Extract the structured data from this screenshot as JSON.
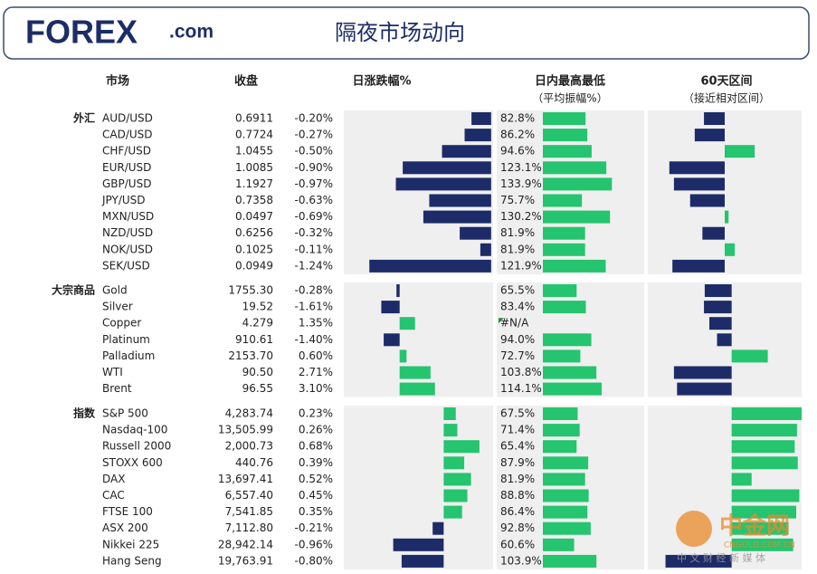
{
  "header": {
    "logo_main": "FOREX",
    "logo_suffix": ".com",
    "title": "隔夜市场动向"
  },
  "columns": {
    "market": "市场",
    "close": "收盘",
    "change": "日涨跌幅%",
    "intraday": "日内最高最低",
    "intraday_sub": "（平均振幅%）",
    "range60": "60天区间",
    "range60_sub": "（接近相对区间）"
  },
  "intraday_lim": [
    0,
    193
  ],
  "colors": {
    "negative": "#1d2c68",
    "positive": "#25c46f"
  },
  "groups": [
    {
      "name": "外汇",
      "change_lim": [
        -1.5,
        0.02
      ],
      "range60_lim": [
        -1,
        1
      ],
      "rows": [
        {
          "name": "AUD/USD",
          "close": "0.6911",
          "change": -0.2,
          "change_label": "-0.20%",
          "intraday": 82.8,
          "intraday_label": "82.8%",
          "range60": -0.27
        },
        {
          "name": "CAD/USD",
          "close": "0.7724",
          "change": -0.27,
          "change_label": "-0.27%",
          "intraday": 86.2,
          "intraday_label": "86.2%",
          "range60": -0.39
        },
        {
          "name": "CHF/USD",
          "close": "1.0455",
          "change": -0.5,
          "change_label": "-0.50%",
          "intraday": 94.6,
          "intraday_label": "94.6%",
          "range60": 0.39
        },
        {
          "name": "EUR/USD",
          "close": "1.0085",
          "change": -0.9,
          "change_label": "-0.90%",
          "intraday": 123.1,
          "intraday_label": "123.1%",
          "range60": -0.72
        },
        {
          "name": "GBP/USD",
          "close": "1.1927",
          "change": -0.97,
          "change_label": "-0.97%",
          "intraday": 133.9,
          "intraday_label": "133.9%",
          "range60": -0.66
        },
        {
          "name": "JPY/USD",
          "close": "0.7358",
          "change": -0.63,
          "change_label": "-0.63%",
          "intraday": 75.7,
          "intraday_label": "75.7%",
          "range60": -0.45
        },
        {
          "name": "MXN/USD",
          "close": "0.0497",
          "change": -0.69,
          "change_label": "-0.69%",
          "intraday": 130.2,
          "intraday_label": "130.2%",
          "range60": 0.05
        },
        {
          "name": "NZD/USD",
          "close": "0.6256",
          "change": -0.32,
          "change_label": "-0.32%",
          "intraday": 81.9,
          "intraday_label": "81.9%",
          "range60": -0.29
        },
        {
          "name": "NOK/USD",
          "close": "0.1025",
          "change": -0.11,
          "change_label": "-0.11%",
          "intraday": 81.9,
          "intraday_label": "81.9%",
          "range60": 0.13
        },
        {
          "name": "SEK/USD",
          "close": "0.0949",
          "change": -1.24,
          "change_label": "-1.24%",
          "intraday": 121.9,
          "intraday_label": "121.9%",
          "range60": -0.68
        }
      ]
    },
    {
      "name": "大宗商品",
      "change_lim": [
        -4.9,
        8.2
      ],
      "range60_lim": [
        -1.09,
        0.91
      ],
      "rows": [
        {
          "name": "Gold",
          "close": "1755.30",
          "change": -0.28,
          "change_label": "-0.28%",
          "intraday": 65.5,
          "intraday_label": "65.5%",
          "range60": -0.35
        },
        {
          "name": "Silver",
          "close": "19.52",
          "change": -1.61,
          "change_label": "-1.61%",
          "intraday": 83.4,
          "intraday_label": "83.4%",
          "range60": -0.36
        },
        {
          "name": "Copper",
          "close": "4.279",
          "change": 1.35,
          "change_label": "1.35%",
          "intraday": null,
          "intraday_label": "#N/A",
          "range60": -0.29
        },
        {
          "name": "Platinum",
          "close": "910.61",
          "change": -1.4,
          "change_label": "-1.40%",
          "intraday": 94.0,
          "intraday_label": "94.0%",
          "range60": -0.19
        },
        {
          "name": "Palladium",
          "close": "2153.70",
          "change": 0.6,
          "change_label": "0.60%",
          "intraday": 72.7,
          "intraday_label": "72.7%",
          "range60": 0.47
        },
        {
          "name": "WTI",
          "close": "90.50",
          "change": 2.71,
          "change_label": "2.71%",
          "intraday": 103.8,
          "intraday_label": "103.8%",
          "range60": -0.75
        },
        {
          "name": "Brent",
          "close": "96.55",
          "change": 3.1,
          "change_label": "3.10%",
          "intraday": 114.1,
          "intraday_label": "114.1%",
          "range60": -0.71
        }
      ]
    },
    {
      "name": "指数",
      "change_lim": [
        -1.9,
        0.94
      ],
      "range60_lim": [
        -1.09,
        0.91
      ],
      "rows": [
        {
          "name": "S&P 500",
          "close": "4,283.74",
          "change": 0.23,
          "change_label": "0.23%",
          "intraday": 67.5,
          "intraday_label": "67.5%",
          "range60": 0.91
        },
        {
          "name": "Nasdaq-100",
          "close": "13,505.99",
          "change": 0.26,
          "change_label": "0.26%",
          "intraday": 71.4,
          "intraday_label": "71.4%",
          "range60": 0.85
        },
        {
          "name": "Russell 2000",
          "close": "2,000.73",
          "change": 0.68,
          "change_label": "0.68%",
          "intraday": 65.4,
          "intraday_label": "65.4%",
          "range60": 0.82
        },
        {
          "name": "STOXX 600",
          "close": "440.76",
          "change": 0.39,
          "change_label": "0.39%",
          "intraday": 87.9,
          "intraday_label": "87.9%",
          "range60": 0.86
        },
        {
          "name": "DAX",
          "close": "13,697.41",
          "change": 0.52,
          "change_label": "0.52%",
          "intraday": 81.9,
          "intraday_label": "81.9%",
          "range60": 0.26
        },
        {
          "name": "CAC",
          "close": "6,557.40",
          "change": 0.45,
          "change_label": "0.45%",
          "intraday": 88.8,
          "intraday_label": "88.8%",
          "range60": 0.88
        },
        {
          "name": "FTSE 100",
          "close": "7,541.85",
          "change": 0.35,
          "change_label": "0.35%",
          "intraday": 86.4,
          "intraday_label": "86.4%",
          "range60": 0.84
        },
        {
          "name": "ASX 200",
          "close": "7,112.80",
          "change": -0.21,
          "change_label": "-0.21%",
          "intraday": 92.8,
          "intraday_label": "92.8%",
          "range60": 0.74
        },
        {
          "name": "Nikkei 225",
          "close": "28,942.14",
          "change": -0.96,
          "change_label": "-0.96%",
          "intraday": 60.6,
          "intraday_label": "60.6%",
          "range60": 0.8
        },
        {
          "name": "Hang Seng",
          "close": "19,763.91",
          "change": -0.8,
          "change_label": "-0.80%",
          "intraday": 103.9,
          "intraday_label": "103.9%",
          "range60": -0.86
        }
      ]
    }
  ],
  "watermark": {
    "name": "中金网",
    "site": "CNGOLD.COM.CN",
    "tagline": "中 文 财 经 新 媒 体"
  }
}
